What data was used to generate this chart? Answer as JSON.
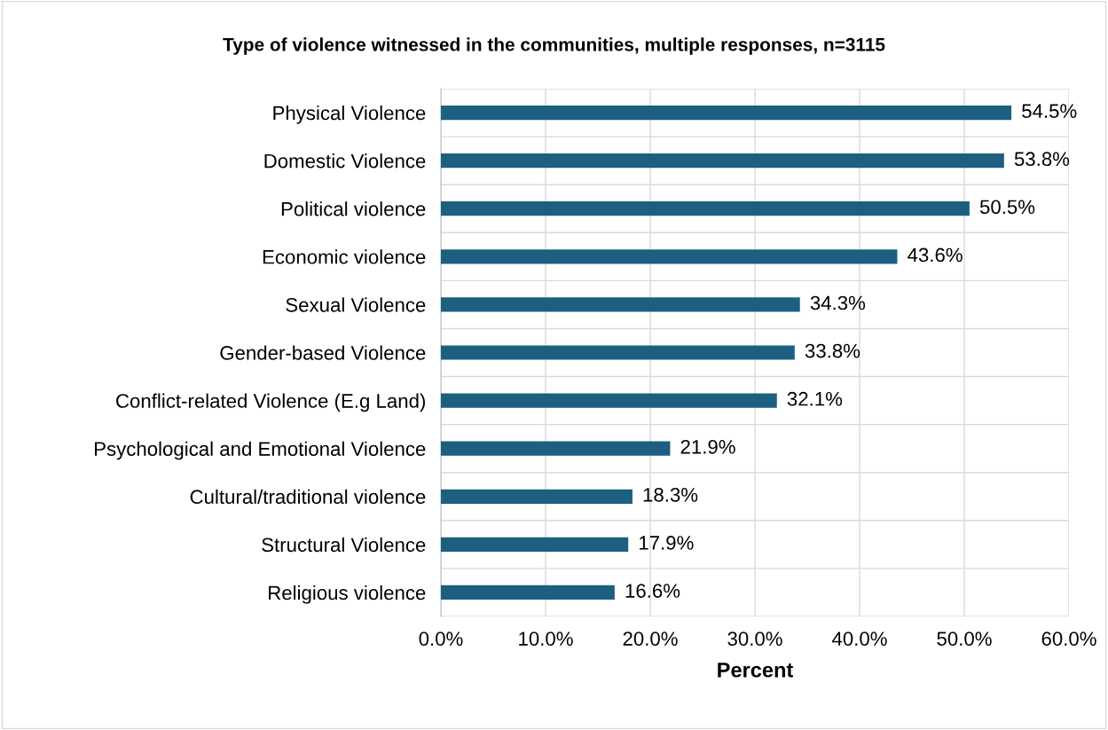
{
  "chart_data": {
    "type": "bar",
    "orientation": "horizontal",
    "title": "Type of violence witnessed in the communities, multiple responses, n=3115",
    "xlabel": "Percent",
    "categories": [
      "Physical Violence",
      "Domestic Violence",
      "Political violence",
      "Economic violence",
      "Sexual Violence",
      "Gender-based Violence",
      "Conflict-related Violence (E.g Land)",
      "Psychological and Emotional Violence",
      "Cultural/traditional violence",
      "Structural Violence",
      "Religious violence"
    ],
    "values": [
      54.5,
      53.8,
      50.5,
      43.6,
      34.3,
      33.8,
      32.1,
      21.9,
      18.3,
      17.9,
      16.6
    ],
    "value_labels": [
      "54.5%",
      "53.8%",
      "50.5%",
      "43.6%",
      "34.3%",
      "33.8%",
      "32.1%",
      "21.9%",
      "18.3%",
      "17.9%",
      "16.6%"
    ],
    "color": "#1c5f80",
    "xlim": [
      0,
      60
    ],
    "xticks": [
      {
        "value": 0,
        "label": "0.0%"
      },
      {
        "value": 10,
        "label": "10.0%"
      },
      {
        "value": 20,
        "label": "20.0%"
      },
      {
        "value": 30,
        "label": "30.0%"
      },
      {
        "value": 40,
        "label": "40.0%"
      },
      {
        "value": 50,
        "label": "50.0%"
      },
      {
        "value": 60,
        "label": "60.0%"
      }
    ],
    "grid": true,
    "legend": false
  }
}
